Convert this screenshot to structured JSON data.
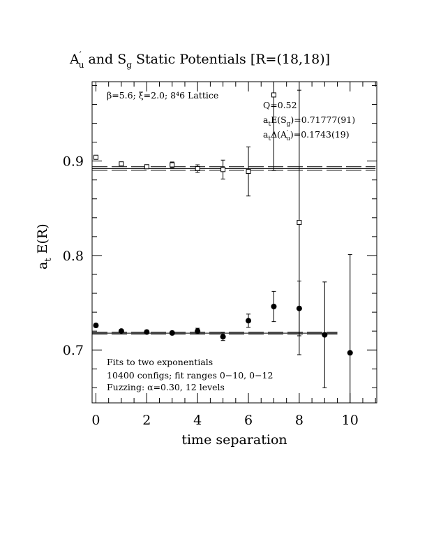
{
  "chart_data": {
    "type": "scatter",
    "title": "A′u and Sg Static Potentials [R=(18,18)]",
    "title_parts": {
      "a": "A",
      "a_prime": "′",
      "a_sub": "u",
      "mid": " and S",
      "s_sub": "g",
      "rest": " Static Potentials [R=(18,18)]"
    },
    "xlabel": "time separation",
    "ylabel": "at E(R)",
    "ylabel_parts": {
      "a": "a",
      "a_sub": "t",
      "rest": " E(R)"
    },
    "xlim": [
      -0.15,
      11.05
    ],
    "ylim": [
      0.644,
      0.984
    ],
    "xticks": [
      0,
      2,
      4,
      6,
      8,
      10
    ],
    "yticks": [
      0.7,
      0.8,
      0.9
    ],
    "xtick_labels": [
      "0",
      "2",
      "4",
      "6",
      "8",
      "10"
    ],
    "ytick_labels": [
      "0.7",
      "0.8",
      "0.9"
    ],
    "grid": false,
    "annotations": {
      "lattice": "β=5.6; ξ=2.0; 8⁴6 Lattice",
      "q": "Q=0.52",
      "es_g": "atE(Sg)=0.71777(91)",
      "ea_u": "atΔ(A′u)=0.1743(19)",
      "fits": "Fits to two exponentials",
      "configs": "10400 configs; fit ranges 0−10, 0−12",
      "fuzzing": "Fuzzing: α=0.30, 12 levels"
    },
    "annotation_parts": {
      "es_g": {
        "a": "a",
        "a_sub": "t",
        "mid": "E(S",
        "s_sub": "g",
        "rest": ")=0.71777(91)"
      },
      "ea_u": {
        "a": "a",
        "a_sub": "t",
        "mid": "Δ(A",
        "u_prime": "′",
        "u_sub": "u",
        "rest": ")=0.1743(19)"
      }
    },
    "series": [
      {
        "marker": "square-open",
        "x": [
          0,
          1,
          2,
          3,
          4,
          5,
          6,
          7,
          8
        ],
        "y": [
          0.904,
          0.897,
          0.894,
          0.896,
          0.892,
          0.891,
          0.889,
          0.97,
          0.835
        ],
        "yerr": [
          0.002,
          0.002,
          0.002,
          0.003,
          0.004,
          0.01,
          0.026,
          0.08,
          0.14
        ],
        "fit": {
          "value": 0.8921,
          "band": 0.0019,
          "x_range": [
            0,
            11
          ]
        }
      },
      {
        "marker": "circle-filled",
        "x": [
          0,
          1,
          2,
          3,
          4,
          5,
          6,
          7,
          8,
          9,
          10
        ],
        "y": [
          0.726,
          0.72,
          0.719,
          0.718,
          0.72,
          0.714,
          0.731,
          0.746,
          0.744,
          0.716,
          0.697
        ],
        "yerr": [
          0.002,
          0.002,
          0.002,
          0.002,
          0.003,
          0.004,
          0.007,
          0.016,
          0.029,
          0.056,
          0.104
        ],
        "fit": {
          "value": 0.7178,
          "band": 0.0009,
          "x_range": [
            0,
            9.5
          ]
        }
      }
    ]
  }
}
